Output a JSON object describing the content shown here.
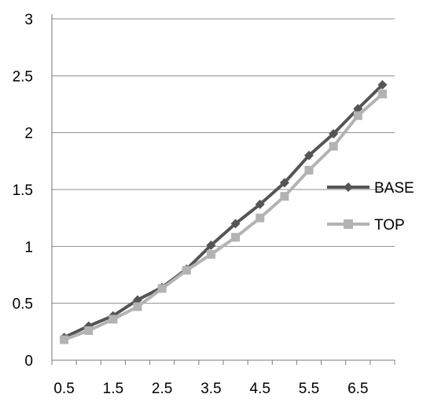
{
  "chart_data": {
    "type": "line",
    "x": [
      0.5,
      1,
      1.5,
      2,
      2.5,
      3,
      3.5,
      4,
      4.5,
      5,
      5.5,
      6,
      6.5,
      7
    ],
    "x_tick_labels": [
      "0.5",
      "1.5",
      "2.5",
      "3.5",
      "4.5",
      "5.5",
      "6.5"
    ],
    "y_tick_labels": [
      "0",
      "0.5",
      "1",
      "1.5",
      "2",
      "2.5",
      "3"
    ],
    "ylim": [
      0,
      3
    ],
    "grid": "horizontal",
    "legend_position": "right",
    "series": [
      {
        "name": "BASE",
        "marker": "diamond",
        "color": "#555555",
        "values": [
          0.2,
          0.3,
          0.39,
          0.53,
          0.64,
          0.8,
          1.01,
          1.2,
          1.37,
          1.56,
          1.8,
          1.99,
          2.21,
          2.42
        ]
      },
      {
        "name": "TOP",
        "marker": "square",
        "color": "#b3b3b3",
        "values": [
          0.18,
          0.26,
          0.36,
          0.47,
          0.63,
          0.79,
          0.93,
          1.08,
          1.25,
          1.44,
          1.67,
          1.88,
          2.15,
          2.34
        ]
      }
    ]
  }
}
